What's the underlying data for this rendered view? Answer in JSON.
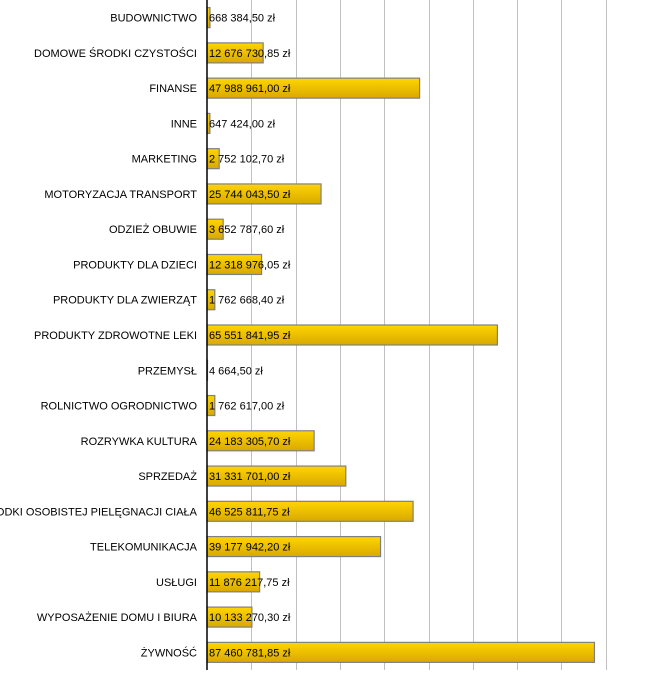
{
  "chart_data": {
    "type": "bar",
    "orientation": "horizontal",
    "title": "",
    "xlabel": "",
    "ylabel": "",
    "xlim": [
      0,
      100000000
    ],
    "grid": true,
    "grid_step": 10000000,
    "currency_suffix": "zł",
    "bar_color": "#f5c400",
    "bar_border": "#808080",
    "categories": [
      "BUDOWNICTWO",
      "DOMOWE ŚRODKI CZYSTOŚCI",
      "FINANSE",
      "INNE",
      "MARKETING",
      "MOTORYZACJA TRANSPORT",
      "ODZIEŻ OBUWIE",
      "PRODUKTY DLA DZIECI",
      "PRODUKTY DLA ZWIERZĄT",
      "PRODUKTY ZDROWOTNE LEKI",
      "PRZEMYSŁ",
      "ROLNICTWO OGRODNICTWO",
      "ROZRYWKA KULTURA",
      "SPRZEDAŻ",
      "ŚRODKI OSOBISTEJ PIELĘGNACJI CIAŁA",
      "TELEKOMUNIKACJA",
      "USŁUGI",
      "WYPOSAŻENIE DOMU I BIURA",
      "ŻYWNOŚĆ"
    ],
    "values": [
      668384.5,
      12676730.85,
      47988961.0,
      647424.0,
      2752102.7,
      25744043.5,
      3652787.6,
      12318976.05,
      1762668.4,
      65551841.95,
      4664.5,
      1762617.0,
      24183305.7,
      31331701.0,
      46525811.75,
      39177942.2,
      11876217.75,
      10133270.3,
      87460781.85
    ],
    "labels": [
      "668 384,50 zł",
      "12 676 730,85 zł",
      "47 988 961,00 zł",
      "647 424,00 zł",
      "2 752 102,70 zł",
      "25 744 043,50 zł",
      "3 652 787,60 zł",
      "12 318 976,05 zł",
      "1 762 668,40 zł",
      "65 551 841,95 zł",
      "4 664,50 zł",
      "1 762 617,00 zł",
      "24 183 305,70 zł",
      "31 331 701,00 zł",
      "46 525 811,75 zł",
      "39 177 942,20 zł",
      "11 876 217,75 zł",
      "10 133 270,30 zł",
      "87 460 781,85 zł"
    ]
  }
}
